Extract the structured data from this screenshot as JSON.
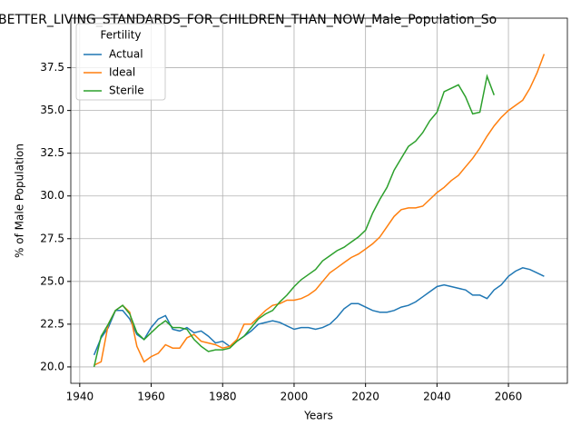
{
  "chart_data": {
    "type": "line",
    "title": "BETTER_LIVING_STANDARDS_FOR_CHILDREN_THAN_NOW_Male_Population_So",
    "xlabel": "Years",
    "ylabel": "% of Male Population",
    "legend_title": "Fertility",
    "legend": "upper left",
    "grid": true,
    "x": [
      1944,
      1946,
      1948,
      1950,
      1952,
      1954,
      1956,
      1958,
      1960,
      1962,
      1964,
      1966,
      1968,
      1970,
      1972,
      1974,
      1976,
      1978,
      1980,
      1982,
      1984,
      1986,
      1988,
      1990,
      1992,
      1994,
      1996,
      1998,
      2000,
      2002,
      2004,
      2006,
      2008,
      2010,
      2012,
      2014,
      2016,
      2018,
      2020,
      2022,
      2024,
      2026,
      2028,
      2030,
      2032,
      2034,
      2036,
      2038,
      2040,
      2042,
      2044,
      2046,
      2048,
      2050,
      2052,
      2054,
      2056,
      2058,
      2060,
      2062,
      2064,
      2066,
      2068,
      2070
    ],
    "series": [
      {
        "name": "Actual",
        "color": "#1f77b4",
        "values": [
          20.7,
          21.7,
          22.3,
          23.3,
          23.3,
          22.8,
          21.9,
          21.6,
          22.3,
          22.8,
          23.0,
          22.2,
          22.1,
          22.3,
          22.0,
          22.1,
          21.8,
          21.4,
          21.5,
          21.2,
          21.5,
          21.8,
          22.1,
          22.5,
          22.6,
          22.7,
          22.6,
          22.4,
          22.2,
          22.3,
          22.3,
          22.2,
          22.3,
          22.5,
          22.9,
          23.4,
          23.7,
          23.7,
          23.5,
          23.3,
          23.2,
          23.2,
          23.3,
          23.5,
          23.6,
          23.8,
          24.1,
          24.4,
          24.7,
          24.8,
          24.7,
          24.6,
          24.5,
          24.2,
          24.2,
          24.0,
          24.5,
          24.8,
          25.3,
          25.6,
          25.8,
          25.7,
          25.5,
          25.3
        ]
      },
      {
        "name": "Ideal",
        "color": "#ff7f0e",
        "values": [
          20.1,
          20.3,
          22.5,
          23.3,
          23.6,
          23.2,
          21.2,
          20.3,
          20.6,
          20.8,
          21.3,
          21.1,
          21.1,
          21.7,
          21.9,
          21.5,
          21.4,
          21.3,
          21.1,
          21.2,
          21.6,
          22.5,
          22.5,
          22.9,
          23.3,
          23.6,
          23.7,
          23.9,
          23.9,
          24.0,
          24.2,
          24.5,
          25.0,
          25.5,
          25.8,
          26.1,
          26.4,
          26.6,
          26.9,
          27.2,
          27.6,
          28.2,
          28.8,
          29.2,
          29.3,
          29.3,
          29.4,
          29.8,
          30.2,
          30.5,
          30.9,
          31.2,
          31.7,
          32.2,
          32.8,
          33.5,
          34.1,
          34.6,
          35.0,
          35.3,
          35.6,
          36.3,
          37.2,
          38.3
        ]
      },
      {
        "name": "Sterile",
        "color": "#2ca02c",
        "values": [
          20.0,
          21.8,
          22.5,
          23.3,
          23.6,
          23.1,
          22.0,
          21.6,
          22.0,
          22.4,
          22.7,
          22.3,
          22.3,
          22.2,
          21.6,
          21.2,
          20.9,
          21.0,
          21.0,
          21.1,
          21.5,
          21.8,
          22.3,
          22.8,
          23.1,
          23.3,
          23.8,
          24.2,
          24.7,
          25.1,
          25.4,
          25.7,
          26.2,
          26.5,
          26.8,
          27.0,
          27.3,
          27.6,
          28.0,
          29.0,
          29.8,
          30.5,
          31.5,
          32.2,
          32.9,
          33.2,
          33.7,
          34.4,
          34.9,
          36.1,
          36.3,
          36.5,
          35.8,
          34.8,
          34.9,
          37.0,
          35.9,
          null,
          null,
          null,
          null,
          null,
          null,
          null
        ]
      }
    ],
    "xlim": [
      1937.5,
      2076.5
    ],
    "xticks": [
      1940,
      1960,
      1980,
      2000,
      2020,
      2040,
      2060
    ],
    "ylim": [
      19.04,
      40.4
    ],
    "yticks": [
      {
        "value": 20,
        "label": "20.0"
      },
      {
        "value": 22.5,
        "label": "22.5"
      },
      {
        "value": 25,
        "label": "25.0"
      },
      {
        "value": 27.5,
        "label": "27.5"
      },
      {
        "value": 30,
        "label": "30.0"
      },
      {
        "value": 32.5,
        "label": "32.5"
      },
      {
        "value": 35,
        "label": "35.0"
      },
      {
        "value": 37.5,
        "label": "37.5"
      }
    ]
  }
}
